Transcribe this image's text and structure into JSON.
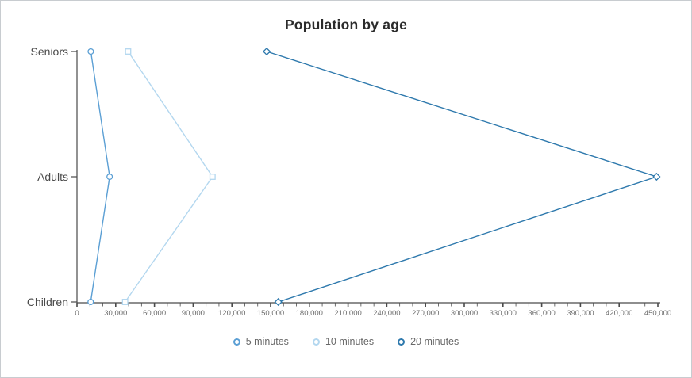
{
  "chart": {
    "title": "Population by age"
  },
  "chart_data": {
    "type": "line",
    "orientation": "horizontal-categories",
    "title": "Population by age",
    "categories": [
      "Seniors",
      "Adults",
      "Children"
    ],
    "series": [
      {
        "name": "5 minutes",
        "marker": "circle",
        "color": "#5b9fd4",
        "values": [
          10700,
          25300,
          10600
        ]
      },
      {
        "name": "10 minutes",
        "marker": "square",
        "color": "#b3d7ef",
        "values": [
          39600,
          105000,
          37300
        ]
      },
      {
        "name": "20 minutes",
        "marker": "diamond",
        "color": "#2e79ad",
        "values": [
          147000,
          449000,
          156000
        ]
      }
    ],
    "xlabel": "",
    "ylabel": "",
    "xlim": [
      0,
      450000
    ],
    "x_major_tick_step": 30000,
    "x_minor_tick_step": 10000,
    "x_tick_labels": [
      "0",
      "30,000",
      "60,000",
      "90,000",
      "120,000",
      "150,000",
      "180,000",
      "210,000",
      "240,000",
      "270,000",
      "300,000",
      "330,000",
      "360,000",
      "390,000",
      "420,000",
      "450,000"
    ],
    "grid": false,
    "legend_position": "bottom"
  },
  "colors": {
    "axis": "#4a4a4a",
    "tick_label": "#6e6e6e",
    "category_label": "#4a4a4a",
    "title": "#2b2b2b",
    "background": "#ffffff"
  }
}
